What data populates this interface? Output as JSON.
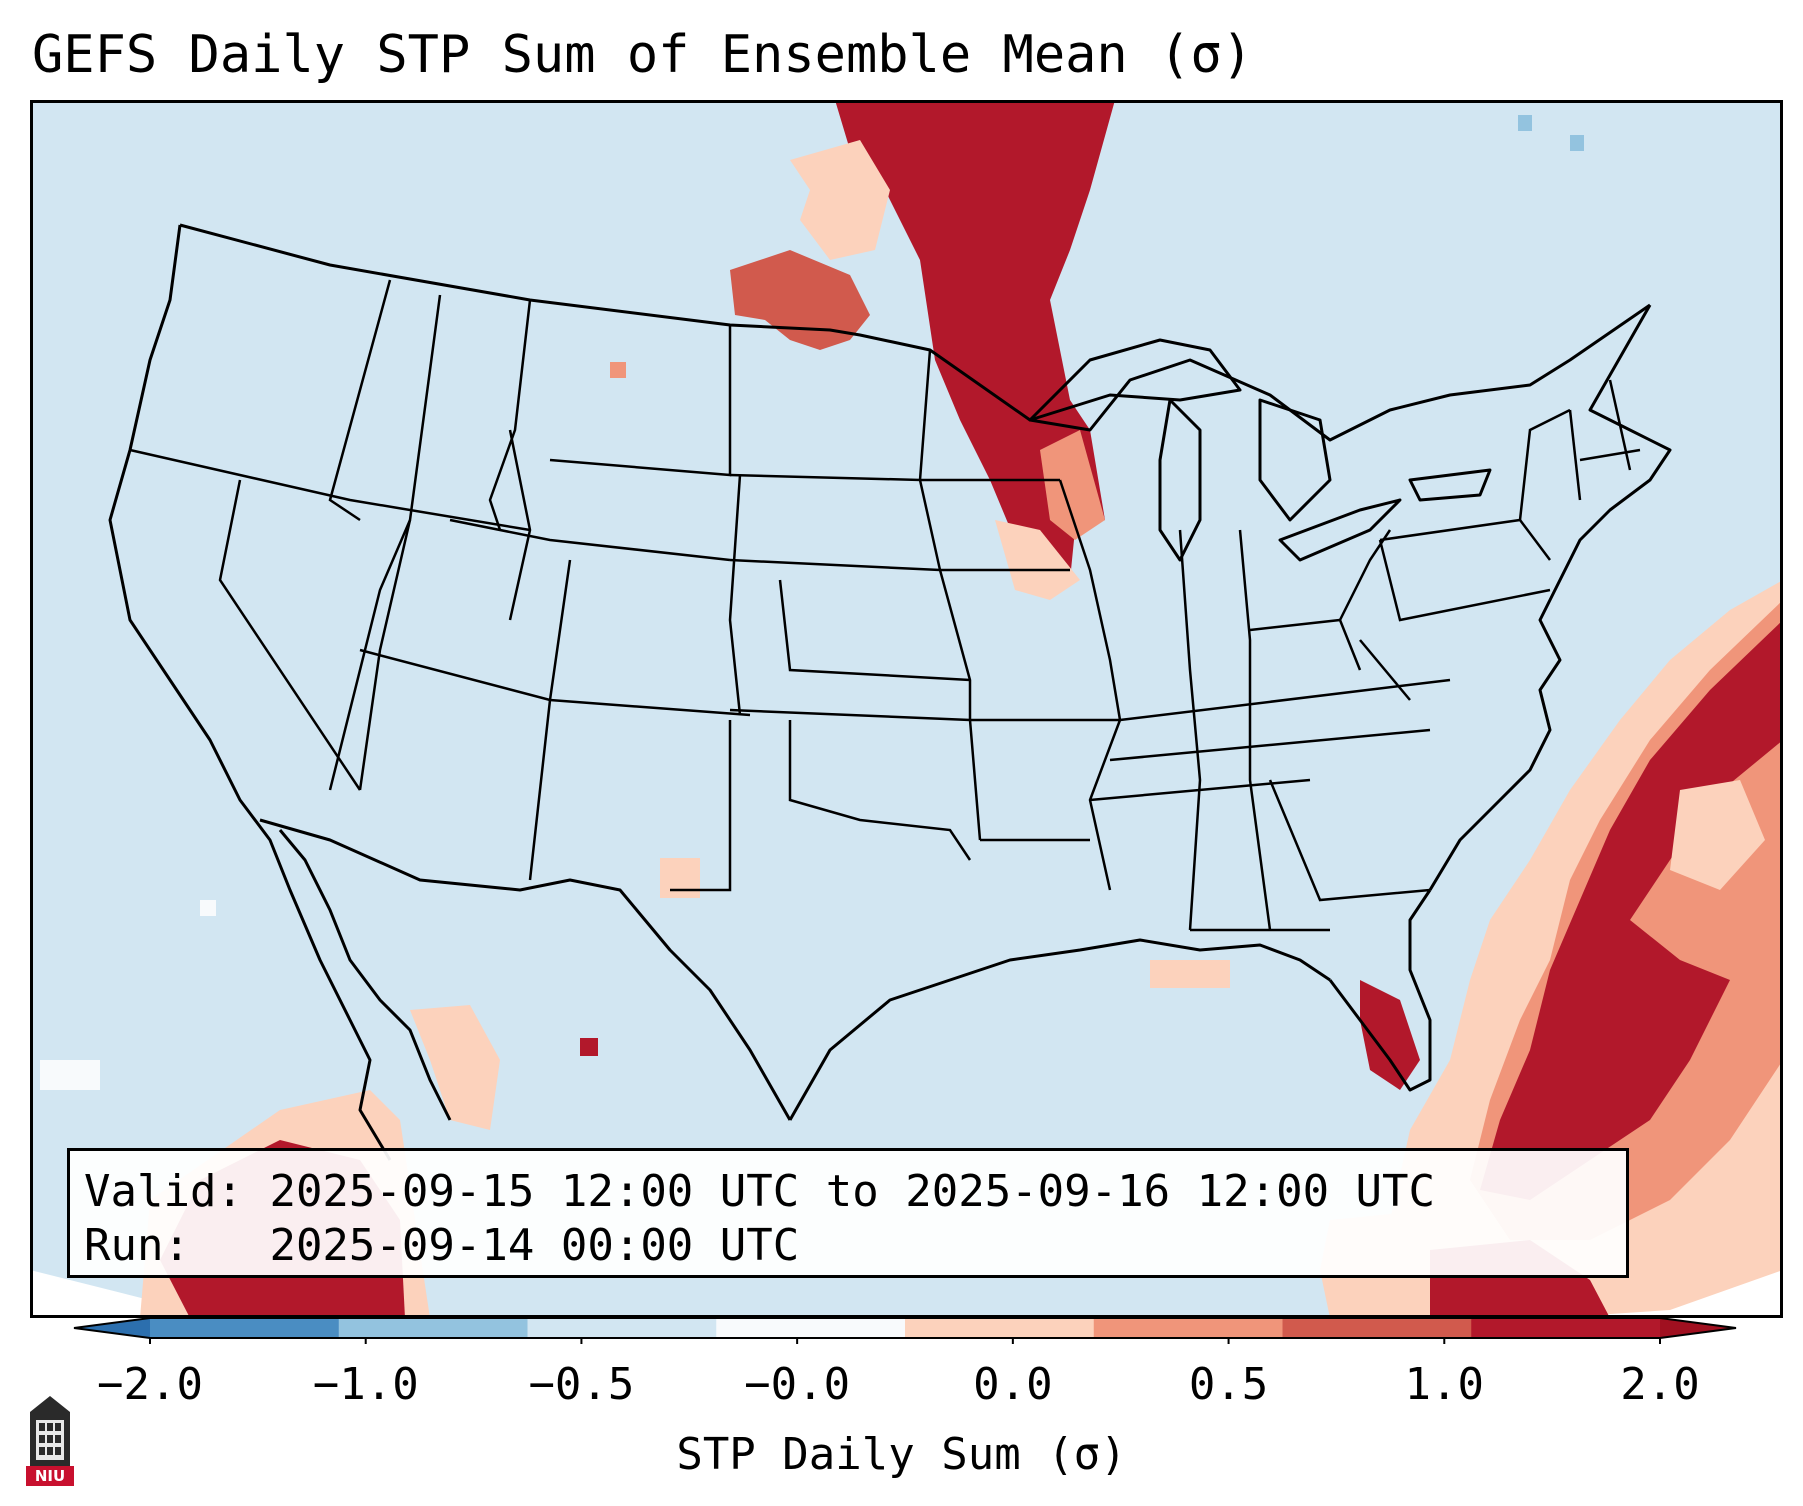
{
  "title": "GEFS Daily STP Sum of Ensemble Mean (σ)",
  "info": {
    "valid_label": "Valid:",
    "valid_value": "2025-09-15 12:00 UTC to 2025-09-16 12:00 UTC",
    "run_label": "Run:",
    "run_value": "2025-09-14 00:00 UTC"
  },
  "colorbar": {
    "label": "STP Daily Sum (σ)",
    "ticks": [
      "−2.0",
      "−1.0",
      "−0.5",
      "−0.0",
      "0.0",
      "0.5",
      "1.0",
      "2.0"
    ],
    "bin_colors": [
      "#4a8dc2",
      "#93c3df",
      "#d2e6f2",
      "#f8fafc",
      "#fcd2bc",
      "#f0957a",
      "#d15a4d",
      "#b2182b"
    ],
    "extend_low_color": "#2c6fae",
    "extend_high_color": "#a01020"
  },
  "map": {
    "background_color": "#d2e6f2",
    "outside_color": "#ffffff",
    "boundary_color": "#000000",
    "anomaly_regions": [
      {
        "region": "northern-plains-upper-midwest",
        "level": "2.0"
      },
      {
        "region": "montana-dakotas",
        "level": "1.0"
      },
      {
        "region": "western-atlantic-florida",
        "level": "2.0"
      },
      {
        "region": "eastern-pacific",
        "level": "2.0"
      },
      {
        "region": "gulf-of-california",
        "level": "0.5"
      }
    ]
  },
  "logo_text": "NIU"
}
